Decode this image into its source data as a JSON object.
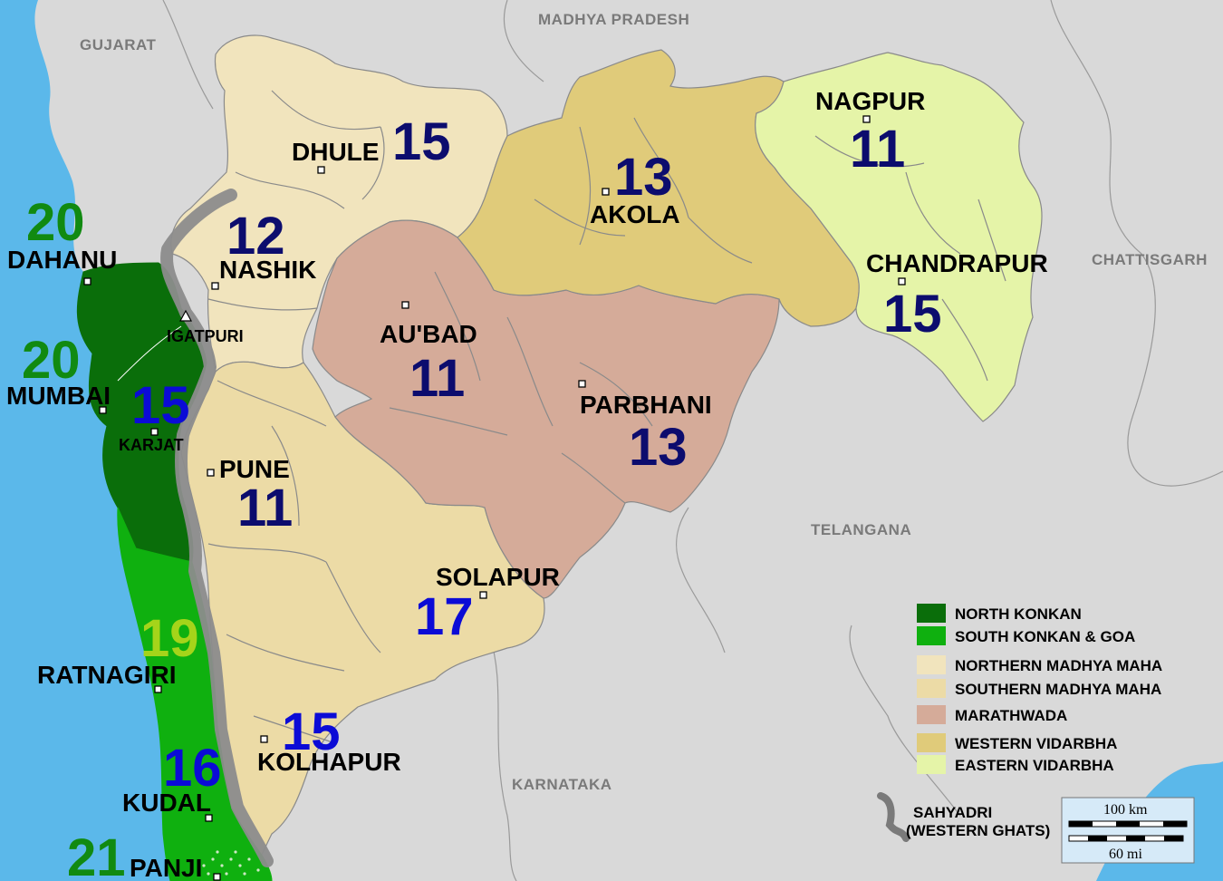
{
  "neighbors": {
    "madhya_pradesh": "MADHYA PRADESH",
    "gujarat": "GUJARAT",
    "chattisgarh": "CHATTISGARH",
    "telangana": "TELANGANA",
    "karnataka": "KARNATAKA"
  },
  "cities": {
    "dhule": "DHULE",
    "nashik": "NASHIK",
    "igatpuri": "IGATPURI",
    "aurangabad": "AU'BAD",
    "pune": "PUNE",
    "solapur": "SOLAPUR",
    "kolhapur": "KOLHAPUR",
    "akola": "AKOLA",
    "parbhani": "PARBHANI",
    "nagpur": "NAGPUR",
    "chandrapur": "CHANDRAPUR",
    "dahanu": "DAHANU",
    "mumbai": "MUMBAI",
    "karjat": "KARJAT",
    "ratnagiri": "RATNAGIRI",
    "kudal": "KUDAL",
    "panji": "PANJI"
  },
  "values": {
    "dhule": "15",
    "nashik": "12",
    "aurangabad": "11",
    "pune": "11",
    "solapur": "17",
    "kolhapur": "15",
    "akola": "13",
    "parbhani": "13",
    "nagpur": "11",
    "chandrapur": "15",
    "dahanu": "20",
    "mumbai": "20",
    "karjat": "15",
    "ratnagiri": "19",
    "kudal": "16",
    "panji": "21"
  },
  "legend": [
    {
      "label": "NORTH KONKAN",
      "color": "#0a6e0a"
    },
    {
      "label": "SOUTH KONKAN & GOA",
      "color": "#0fb00f"
    },
    {
      "label": "NORTHERN MADHYA MAHA",
      "color": "#f1e4bd"
    },
    {
      "label": "SOUTHERN MADHYA MAHA",
      "color": "#ecdba6"
    },
    {
      "label": "MARATHWADA",
      "color": "#d5ab99"
    },
    {
      "label": "WESTERN VIDARBHA",
      "color": "#e0cb7a"
    },
    {
      "label": "EASTERN VIDARBHA",
      "color": "#e5f4a8"
    }
  ],
  "sahyadri": {
    "line1": "SAHYADRI",
    "line2": "(WESTERN GHATS)"
  },
  "scale": {
    "km": "100 km",
    "mi": "60 mi"
  },
  "colors": {
    "sea": "#5bb8ea",
    "land_outside": "#d9d9d9",
    "north_konkan": "#0a6e0a",
    "south_konkan": "#0fb00f",
    "northern_madhya": "#f1e4bd",
    "southern_madhya": "#ecdba6",
    "marathwada": "#d5ab99",
    "western_vidarbha": "#e0cb7a",
    "eastern_vidarbha": "#e5f4a8",
    "ghats": "#8c8c8c",
    "value_dark_blue": "#0c0c6e",
    "value_blue": "#0b0bd6",
    "value_green": "#118a11",
    "value_lime": "#a5d41a"
  }
}
